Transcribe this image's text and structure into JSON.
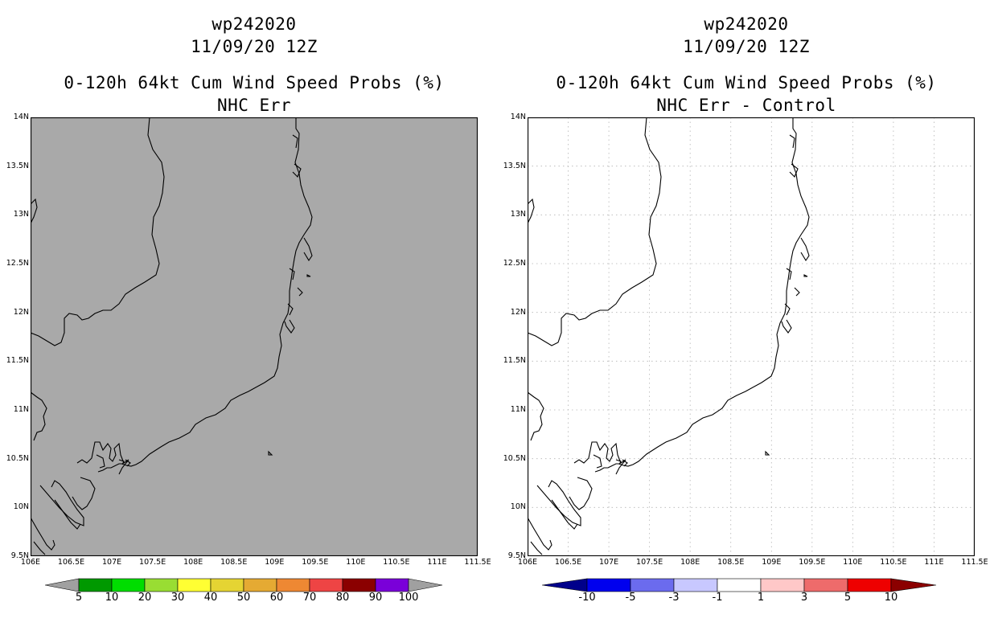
{
  "left_panel": {
    "storm_id": "wp242020",
    "date": "11/09/20 12Z",
    "product": "0-120h 64kt Cum Wind Speed Probs (%)",
    "subtitle": "NHC Err",
    "background_color": "#a9a9a9"
  },
  "right_panel": {
    "storm_id": "wp242020",
    "date": "11/09/20 12Z",
    "product": "0-120h 64kt Cum Wind Speed Probs (%)",
    "subtitle": "NHC Err - Control",
    "background_color": "#ffffff"
  },
  "map": {
    "lon_range": [
      106,
      111.5
    ],
    "lat_range": [
      9.5,
      14
    ],
    "lon_labels": [
      "106E",
      "106.5E",
      "107E",
      "107.5E",
      "108E",
      "108.5E",
      "109E",
      "109.5E",
      "110E",
      "110.5E",
      "111E",
      "111.5E"
    ],
    "lat_labels": [
      "14N",
      "13.5N",
      "13N",
      "12.5N",
      "12N",
      "11.5N",
      "11N",
      "10.5N",
      "10N",
      "9.5N"
    ]
  },
  "left_colorbar": {
    "labels": [
      "5",
      "10",
      "20",
      "30",
      "40",
      "50",
      "60",
      "70",
      "80",
      "90",
      "100"
    ],
    "colors": [
      "#a0a0a0",
      "#009900",
      "#00dd00",
      "#99dd33",
      "#ffff33",
      "#e5d433",
      "#e5aa33",
      "#ee8833",
      "#ee4444",
      "#8b0000",
      "#7a00d9",
      "#a0a0a0"
    ]
  },
  "right_colorbar": {
    "labels": [
      "-10",
      "-5",
      "-3",
      "-1",
      "1",
      "3",
      "5",
      "10"
    ],
    "colors": [
      "#00008b",
      "#0000ee",
      "#6b6bee",
      "#c8c8ff",
      "#ffffff",
      "#ffc8c8",
      "#ee6b6b",
      "#ee0000",
      "#8b0000"
    ]
  }
}
